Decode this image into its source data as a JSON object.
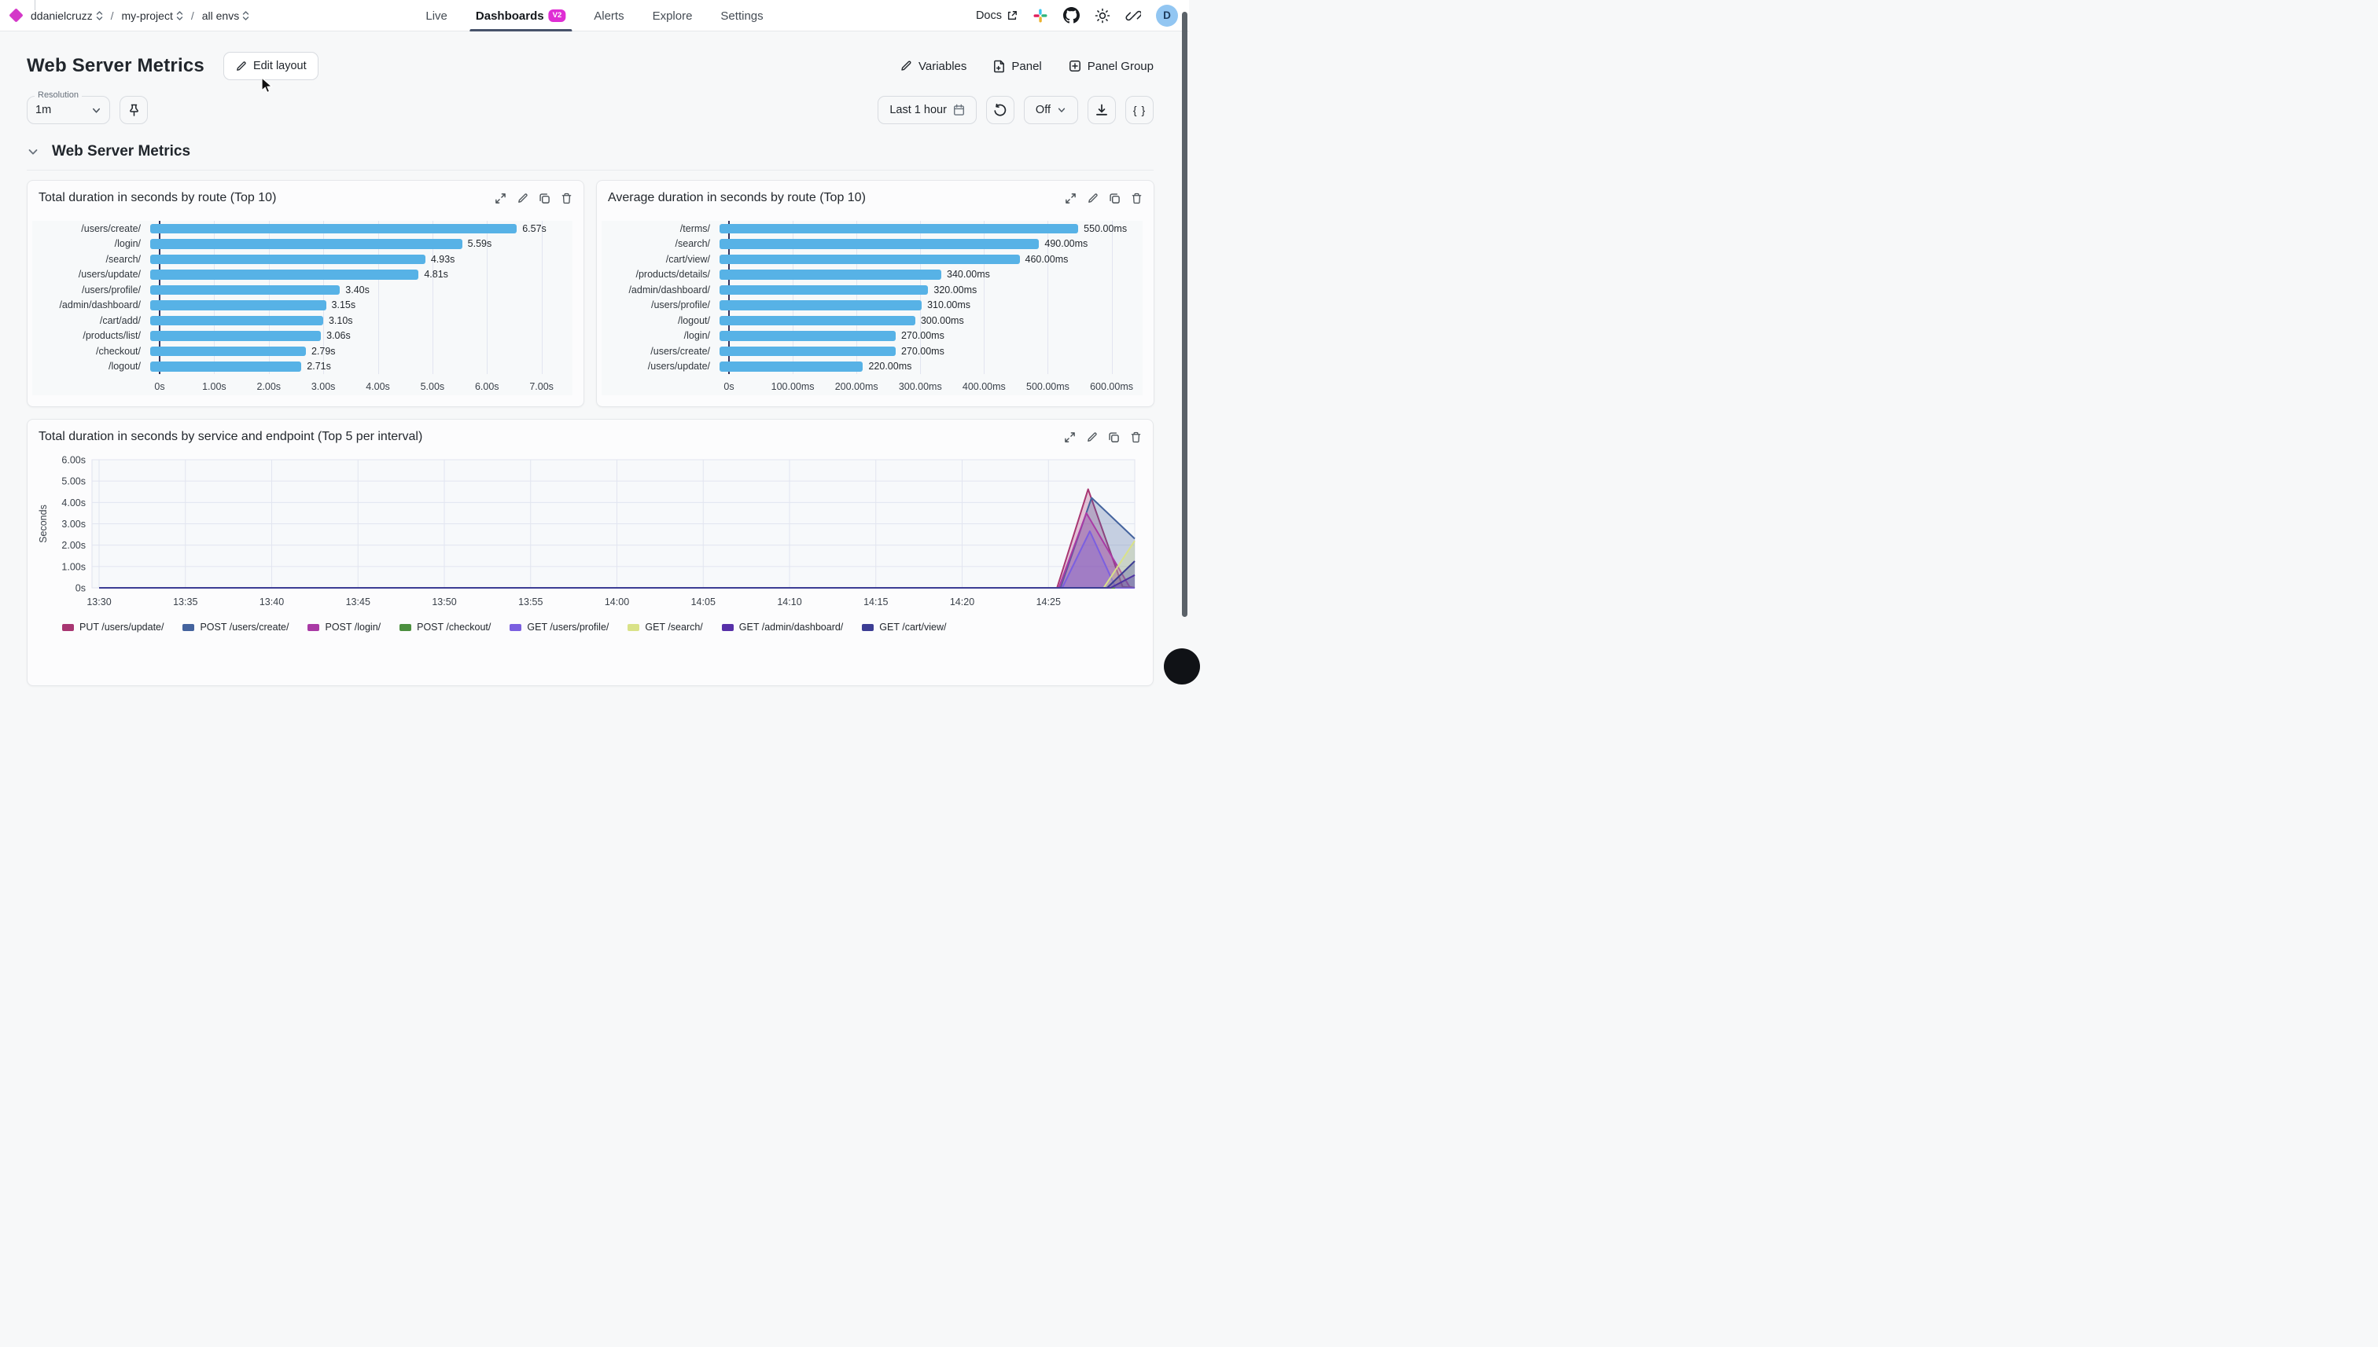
{
  "nav": {
    "breadcrumb": [
      {
        "label": "ddanielcruzz"
      },
      {
        "label": "my-project"
      },
      {
        "label": "all envs"
      }
    ],
    "tabs": [
      {
        "label": "Live",
        "active": false
      },
      {
        "label": "Dashboards",
        "active": true,
        "badge": "V2"
      },
      {
        "label": "Alerts",
        "active": false
      },
      {
        "label": "Explore",
        "active": false
      },
      {
        "label": "Settings",
        "active": false
      }
    ],
    "docs_label": "Docs",
    "right_icons": [
      "slack-icon",
      "github-icon",
      "theme-sun-icon",
      "share-link-icon"
    ],
    "avatar_initial": "D"
  },
  "header": {
    "title": "Web Server Metrics",
    "edit_layout_label": "Edit layout",
    "variables_label": "Variables",
    "panel_label": "Panel",
    "panel_group_label": "Panel Group"
  },
  "toolbar": {
    "resolution_label": "Resolution",
    "resolution_value": "1m",
    "time_range_label": "Last 1 hour",
    "auto_refresh_value": "Off",
    "code_button_label": "{ }"
  },
  "section": {
    "title": "Web Server Metrics"
  },
  "panel_action_icons": [
    "expand-icon",
    "edit-icon",
    "duplicate-icon",
    "delete-icon"
  ],
  "chart_data": [
    {
      "type": "bar",
      "orientation": "horizontal",
      "title": "Total duration in seconds by route (Top 10)",
      "categories": [
        "/users/create/",
        "/login/",
        "/search/",
        "/users/update/",
        "/users/profile/",
        "/admin/dashboard/",
        "/cart/add/",
        "/products/list/",
        "/checkout/",
        "/logout/"
      ],
      "values": [
        6.57,
        5.59,
        4.93,
        4.81,
        3.4,
        3.15,
        3.1,
        3.06,
        2.79,
        2.71
      ],
      "value_labels": [
        "6.57s",
        "5.59s",
        "4.93s",
        "4.81s",
        "3.40s",
        "3.15s",
        "3.10s",
        "3.06s",
        "2.79s",
        "2.71s"
      ],
      "xticks": [
        "0s",
        "1.00s",
        "2.00s",
        "3.00s",
        "4.00s",
        "5.00s",
        "6.00s",
        "7.00s"
      ],
      "xlim": [
        0,
        7
      ],
      "bar_color": "#57b2e6",
      "grid": true,
      "legend_position": "none"
    },
    {
      "type": "bar",
      "orientation": "horizontal",
      "title": "Average duration in seconds by route (Top 10)",
      "categories": [
        "/terms/",
        "/search/",
        "/cart/view/",
        "/products/details/",
        "/admin/dashboard/",
        "/users/profile/",
        "/logout/",
        "/login/",
        "/users/create/",
        "/users/update/"
      ],
      "values": [
        550,
        490,
        460,
        340,
        320,
        310,
        300,
        270,
        270,
        220
      ],
      "value_labels": [
        "550.00ms",
        "490.00ms",
        "460.00ms",
        "340.00ms",
        "320.00ms",
        "310.00ms",
        "300.00ms",
        "270.00ms",
        "270.00ms",
        "220.00ms"
      ],
      "xticks": [
        "0s",
        "100.00ms",
        "200.00ms",
        "300.00ms",
        "400.00ms",
        "500.00ms",
        "600.00ms"
      ],
      "xlim": [
        0,
        600
      ],
      "bar_color": "#57b2e6",
      "grid": true,
      "legend_position": "none"
    },
    {
      "type": "area",
      "title": "Total duration in seconds by service and endpoint (Top 5 per interval)",
      "ylabel": "Seconds",
      "yticks": [
        "0s",
        "1.00s",
        "2.00s",
        "3.00s",
        "4.00s",
        "5.00s",
        "6.00s"
      ],
      "ylim": [
        0,
        6
      ],
      "xticks": [
        "13:30",
        "13:35",
        "13:40",
        "13:45",
        "13:50",
        "13:55",
        "14:00",
        "14:05",
        "14:10",
        "14:15",
        "14:20",
        "14:25"
      ],
      "x_domain_minutes": [
        0,
        60
      ],
      "grid": true,
      "legend_position": "bottom",
      "series": [
        {
          "name": "PUT /users/update/",
          "color": "#a83672",
          "points": [
            [
              0,
              0
            ],
            [
              55.5,
              0
            ],
            [
              57.3,
              4.62
            ],
            [
              59.3,
              0.05
            ],
            [
              60,
              0
            ]
          ]
        },
        {
          "name": "POST /users/create/",
          "color": "#44639e",
          "points": [
            [
              0,
              0
            ],
            [
              55.7,
              0
            ],
            [
              57.5,
              4.22
            ],
            [
              60,
              2.3
            ]
          ]
        },
        {
          "name": "POST /login/",
          "color": "#a93aa5",
          "points": [
            [
              0,
              0
            ],
            [
              55.6,
              0
            ],
            [
              57.2,
              3.5
            ],
            [
              59.7,
              0.05
            ],
            [
              60,
              0
            ]
          ]
        },
        {
          "name": "POST /checkout/",
          "color": "#4c8f3f",
          "points": [
            [
              0,
              0
            ],
            [
              60,
              0
            ]
          ]
        },
        {
          "name": "GET /users/profile/",
          "color": "#7b5fe0",
          "points": [
            [
              0,
              0
            ],
            [
              55.8,
              0
            ],
            [
              57.4,
              2.65
            ],
            [
              58.9,
              0
            ],
            [
              60,
              0
            ]
          ]
        },
        {
          "name": "GET /search/",
          "color": "#d9e288",
          "points": [
            [
              0,
              0
            ],
            [
              58.2,
              0
            ],
            [
              60,
              2.2
            ]
          ]
        },
        {
          "name": "GET /admin/dashboard/",
          "color": "#5730a8",
          "points": [
            [
              0,
              0
            ],
            [
              58.6,
              0
            ],
            [
              60,
              0.6
            ]
          ]
        },
        {
          "name": "GET /cart/view/",
          "color": "#3c3d94",
          "points": [
            [
              0,
              0
            ],
            [
              58.4,
              0
            ],
            [
              60,
              1.25
            ]
          ]
        }
      ]
    }
  ],
  "colors": {
    "brand_magenta": "#d437c8",
    "badge_magenta": "#df2ed4",
    "active_tab_underline": "#47536b",
    "bar_blue": "#57b2e6",
    "axis_dark": "#35355e",
    "gridline": "#e2e5f0",
    "avatar_bg": "#92c6f2"
  }
}
